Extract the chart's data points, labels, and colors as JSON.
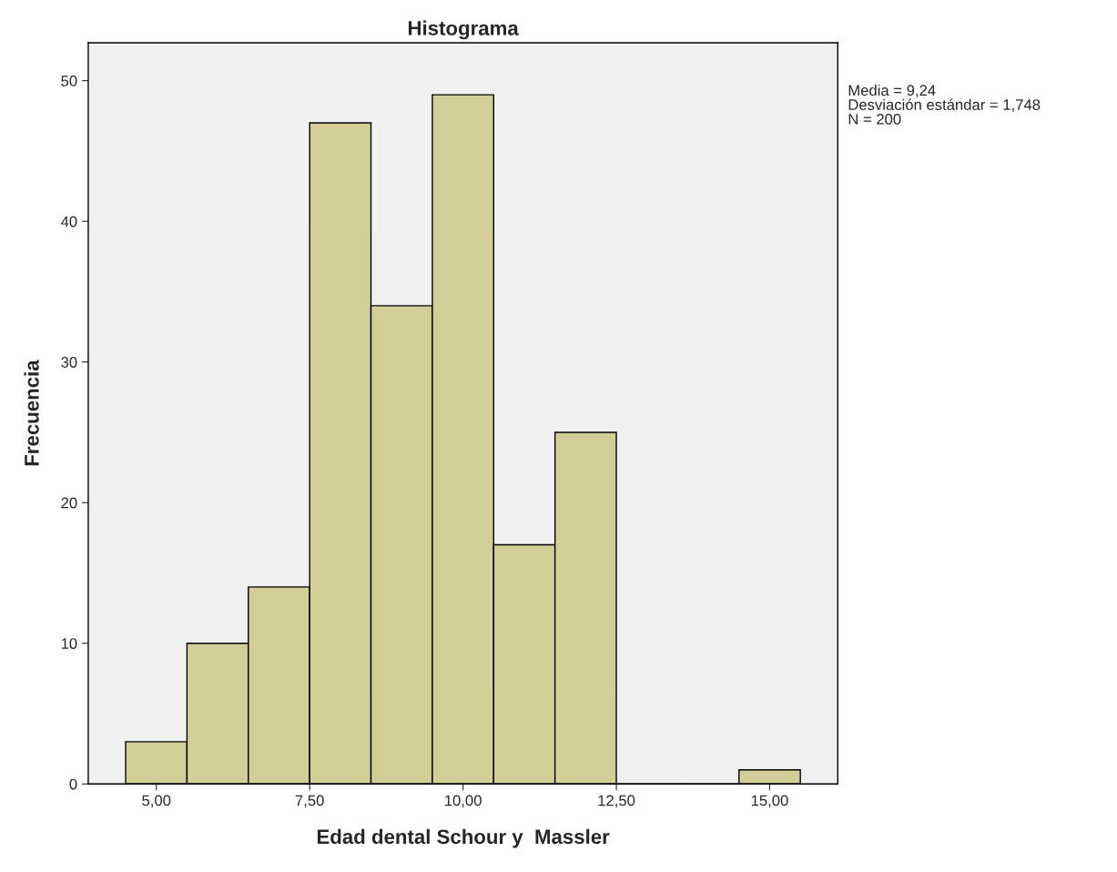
{
  "chart_data": {
    "type": "histogram",
    "title": "Histograma",
    "xlabel": "Edad dental Schour y  Massler",
    "ylabel": "Frecuencia",
    "bins": [
      4.5,
      5.5,
      6.5,
      7.5,
      8.5,
      9.5,
      10.5,
      11.5,
      12.5,
      13.5,
      14.5,
      15.5
    ],
    "values": [
      3,
      10,
      14,
      47,
      34,
      49,
      17,
      25,
      0,
      0,
      1
    ],
    "color": "#d3ce97",
    "xlim": [
      3.89,
      16.11
    ],
    "ylim": [
      0,
      52.7
    ],
    "xticks": [
      {
        "value": 5,
        "label": "5,00"
      },
      {
        "value": 7.5,
        "label": "7,50"
      },
      {
        "value": 10,
        "label": "10,00"
      },
      {
        "value": 12.5,
        "label": "12,50"
      },
      {
        "value": 15,
        "label": "15,00"
      }
    ],
    "yticks": [
      0,
      10,
      20,
      30,
      40,
      50
    ],
    "grid": false,
    "annotations": [
      "Media = 9,24",
      "Desviación estándar = 1,748",
      "N = 200"
    ]
  }
}
